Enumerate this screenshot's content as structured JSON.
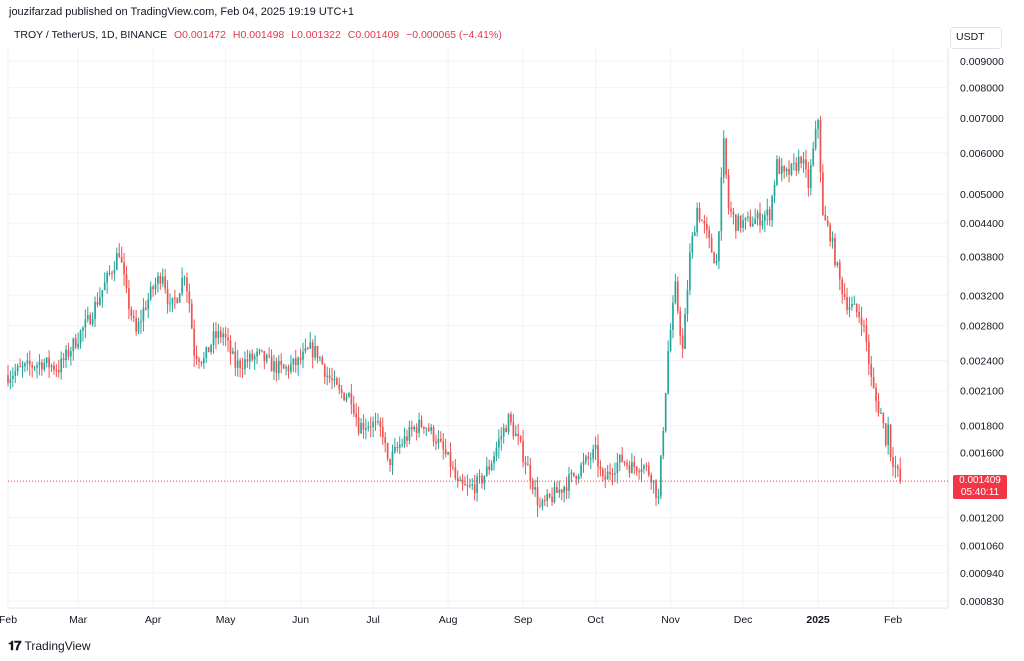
{
  "header": {
    "published": "jouzifarzad published on TradingView.com, Feb 04, 2025 19:19 UTC+1"
  },
  "legend": {
    "symbol": "TROY / TetherUS, 1D, BINANCE",
    "open": "O0.001472",
    "high": "H0.001498",
    "low": "L0.001322",
    "close": "C0.001409",
    "change": "−0.000065 (−4.41%)"
  },
  "price_axis": {
    "unit": "USDT"
  },
  "price_tag": {
    "price": "0.001409",
    "countdown": "05:40:11"
  },
  "footer": {
    "logo_text": "TradingView"
  },
  "colors": {
    "up": "#26a69a",
    "down": "#ef5350",
    "tag": "#f23645"
  },
  "chart_data": {
    "type": "candlestick",
    "title": "TROY / TetherUS, 1D, BINANCE",
    "scale": "log",
    "ylim": [
      0.00078,
      0.0087
    ],
    "y_ticks": [
      "0.009000",
      "0.008000",
      "0.007000",
      "0.006000",
      "0.005000",
      "0.004400",
      "0.003800",
      "0.003200",
      "0.002800",
      "0.002400",
      "0.002100",
      "0.001800",
      "0.001600",
      "0.001200",
      "0.001060",
      "0.000940",
      "0.000830"
    ],
    "x_ticks": [
      "Feb",
      "Mar",
      "Apr",
      "May",
      "Jun",
      "Jul",
      "Aug",
      "Sep",
      "Oct",
      "Nov",
      "Dec",
      "2025",
      "Feb"
    ],
    "x_tick_bold": [
      false,
      false,
      false,
      false,
      false,
      false,
      false,
      false,
      false,
      false,
      false,
      true,
      false
    ],
    "x_tick_dates": [
      "2024-02-01",
      "2024-03-01",
      "2024-04-01",
      "2024-05-01",
      "2024-06-01",
      "2024-07-01",
      "2024-08-01",
      "2024-09-01",
      "2024-10-01",
      "2024-11-01",
      "2024-12-01",
      "2025-01-01",
      "2025-02-01"
    ],
    "last_price": 0.001409,
    "closes": [
      [
        "2024-02-01",
        0.00225
      ],
      [
        "2024-02-08",
        0.00232
      ],
      [
        "2024-02-15",
        0.00238
      ],
      [
        "2024-02-22",
        0.00232
      ],
      [
        "2024-02-29",
        0.00262
      ],
      [
        "2024-03-05",
        0.00285
      ],
      [
        "2024-03-10",
        0.0032
      ],
      [
        "2024-03-15",
        0.0036
      ],
      [
        "2024-03-18",
        0.0039
      ],
      [
        "2024-03-21",
        0.0032
      ],
      [
        "2024-03-25",
        0.0027
      ],
      [
        "2024-03-28",
        0.003
      ],
      [
        "2024-04-01",
        0.0033
      ],
      [
        "2024-04-05",
        0.00355
      ],
      [
        "2024-04-08",
        0.003
      ],
      [
        "2024-04-11",
        0.0032
      ],
      [
        "2024-04-14",
        0.00355
      ],
      [
        "2024-04-16",
        0.0031
      ],
      [
        "2024-04-18",
        0.0025
      ],
      [
        "2024-04-22",
        0.0024
      ],
      [
        "2024-04-26",
        0.00265
      ],
      [
        "2024-04-30",
        0.0027
      ],
      [
        "2024-05-05",
        0.00235
      ],
      [
        "2024-05-10",
        0.0024
      ],
      [
        "2024-05-15",
        0.00245
      ],
      [
        "2024-05-20",
        0.00235
      ],
      [
        "2024-05-25",
        0.0023
      ],
      [
        "2024-05-31",
        0.00238
      ],
      [
        "2024-06-05",
        0.00252
      ],
      [
        "2024-06-08",
        0.00248
      ],
      [
        "2024-06-12",
        0.00225
      ],
      [
        "2024-06-17",
        0.00208
      ],
      [
        "2024-06-22",
        0.00205
      ],
      [
        "2024-06-25",
        0.0018
      ],
      [
        "2024-06-30",
        0.00182
      ],
      [
        "2024-07-05",
        0.00175
      ],
      [
        "2024-07-07",
        0.00152
      ],
      [
        "2024-07-12",
        0.00165
      ],
      [
        "2024-07-18",
        0.00178
      ],
      [
        "2024-07-22",
        0.00182
      ],
      [
        "2024-07-27",
        0.0017
      ],
      [
        "2024-08-02",
        0.00152
      ],
      [
        "2024-08-05",
        0.00138
      ],
      [
        "2024-08-09",
        0.00136
      ],
      [
        "2024-08-14",
        0.0014
      ],
      [
        "2024-08-18",
        0.0015
      ],
      [
        "2024-08-22",
        0.00168
      ],
      [
        "2024-08-26",
        0.00185
      ],
      [
        "2024-08-30",
        0.00168
      ],
      [
        "2024-09-04",
        0.00145
      ],
      [
        "2024-09-08",
        0.00125
      ],
      [
        "2024-09-12",
        0.0013
      ],
      [
        "2024-09-18",
        0.00138
      ],
      [
        "2024-09-24",
        0.00148
      ],
      [
        "2024-09-28",
        0.00155
      ],
      [
        "2024-10-01",
        0.0016
      ],
      [
        "2024-10-04",
        0.0014
      ],
      [
        "2024-10-08",
        0.0015
      ],
      [
        "2024-10-12",
        0.00155
      ],
      [
        "2024-10-16",
        0.0015
      ],
      [
        "2024-10-20",
        0.00152
      ],
      [
        "2024-10-24",
        0.00145
      ],
      [
        "2024-10-27",
        0.0013
      ],
      [
        "2024-10-29",
        0.0018
      ],
      [
        "2024-10-31",
        0.0025
      ],
      [
        "2024-11-03",
        0.0033
      ],
      [
        "2024-11-06",
        0.0025
      ],
      [
        "2024-11-09",
        0.0038
      ],
      [
        "2024-11-12",
        0.0047
      ],
      [
        "2024-11-15",
        0.0043
      ],
      [
        "2024-11-18",
        0.0039
      ],
      [
        "2024-11-20",
        0.0037
      ],
      [
        "2024-11-23",
        0.0062
      ],
      [
        "2024-11-25",
        0.0047
      ],
      [
        "2024-11-28",
        0.0044
      ],
      [
        "2024-12-02",
        0.0044
      ],
      [
        "2024-12-08",
        0.0045
      ],
      [
        "2024-12-12",
        0.0046
      ],
      [
        "2024-12-15",
        0.0057
      ],
      [
        "2024-12-18",
        0.0054
      ],
      [
        "2024-12-22",
        0.0056
      ],
      [
        "2024-12-25",
        0.0059
      ],
      [
        "2024-12-28",
        0.0052
      ],
      [
        "2025-01-01",
        0.007
      ],
      [
        "2025-01-03",
        0.0045
      ],
      [
        "2025-01-06",
        0.0042
      ],
      [
        "2025-01-10",
        0.0034
      ],
      [
        "2025-01-13",
        0.0031
      ],
      [
        "2025-01-16",
        0.003
      ],
      [
        "2025-01-19",
        0.0029
      ],
      [
        "2025-01-21",
        0.0026
      ],
      [
        "2025-01-23",
        0.0022
      ],
      [
        "2025-01-25",
        0.002
      ],
      [
        "2025-01-27",
        0.0019
      ],
      [
        "2025-01-29",
        0.0017
      ],
      [
        "2025-01-30",
        0.0018
      ],
      [
        "2025-01-31",
        0.0016
      ],
      [
        "2025-02-02",
        0.0015
      ],
      [
        "2025-02-04",
        0.001409
      ]
    ]
  }
}
